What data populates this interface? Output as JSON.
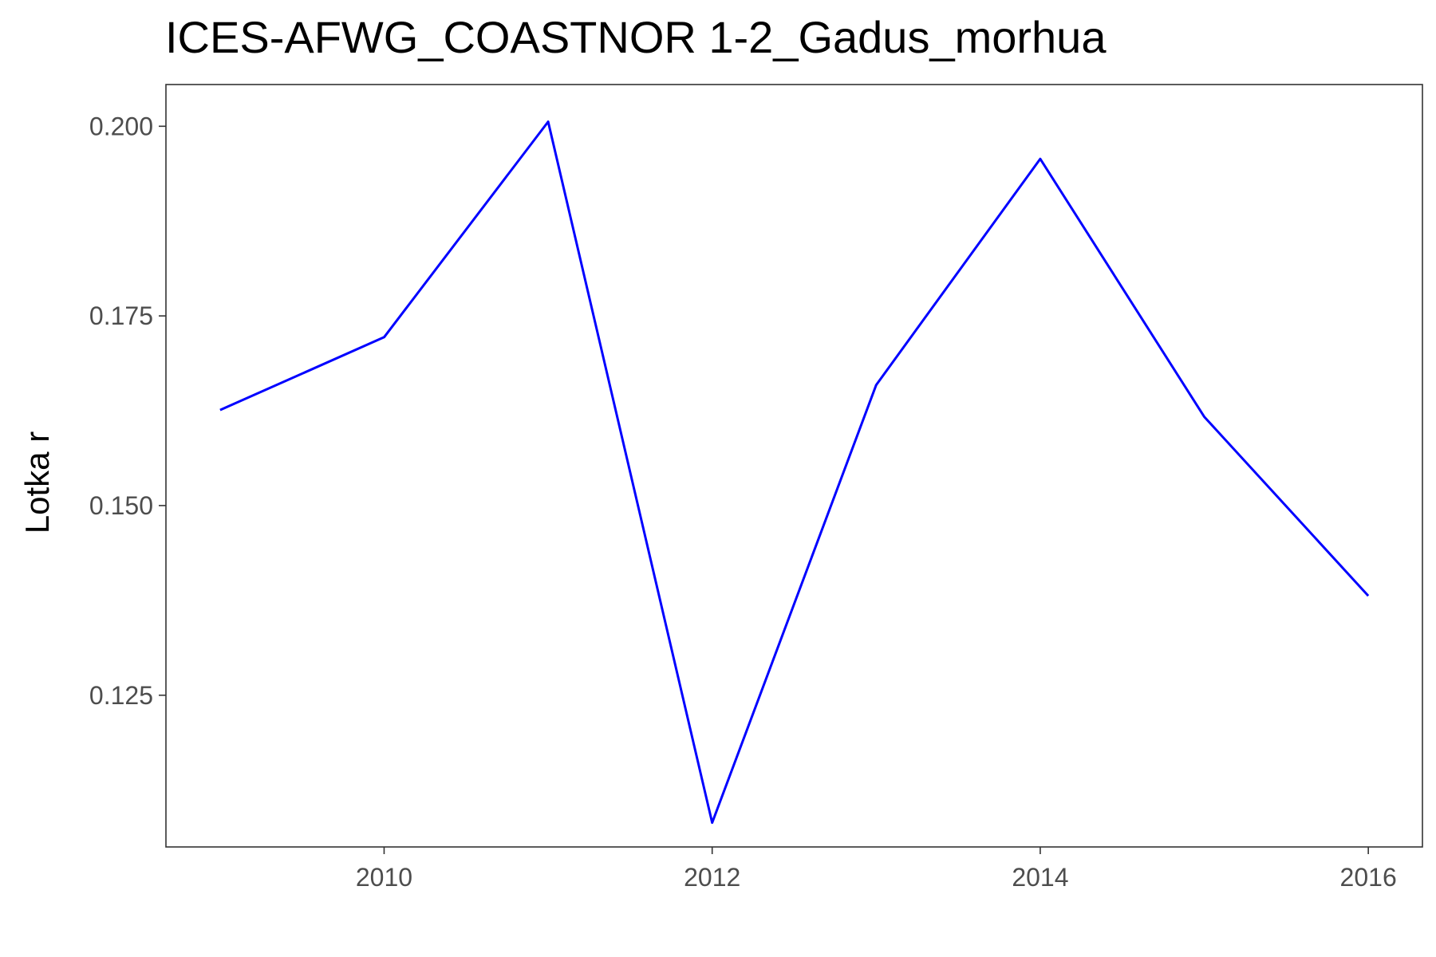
{
  "chart_data": {
    "type": "line",
    "title": "ICES-AFWG_COASTNOR 1-2_Gadus_morhua",
    "xlabel": "",
    "ylabel": "Lotka r",
    "x": [
      2009,
      2010,
      2011,
      2012,
      2013,
      2014,
      2015,
      2016
    ],
    "series": [
      {
        "values": [
          0.1626,
          0.1722,
          0.2006,
          0.1082,
          0.1659,
          0.1957,
          0.1617,
          0.1381
        ],
        "color": "#0000ff"
      }
    ],
    "xlim": [
      2008.67,
      2016.33
    ],
    "ylim": [
      0.105,
      0.2055
    ],
    "xticks": [
      2010,
      2012,
      2014,
      2016
    ],
    "xtick_labels": [
      "2010",
      "2012",
      "2014",
      "2016"
    ],
    "yticks": [
      0.125,
      0.15,
      0.175,
      0.2
    ],
    "ytick_labels": [
      "0.125",
      "0.150",
      "0.175",
      "0.200"
    ],
    "grid": false,
    "legend": "none",
    "frame_color": "#333333",
    "tick_color": "#333333"
  }
}
